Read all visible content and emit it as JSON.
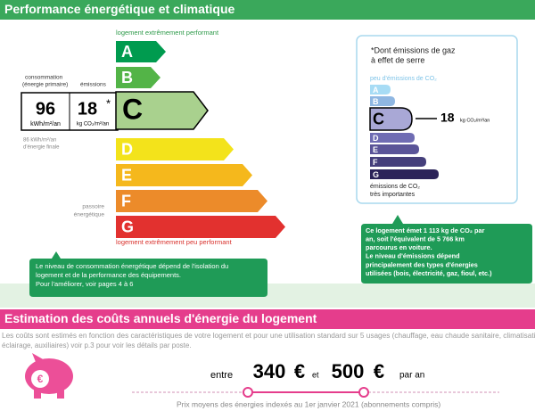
{
  "header": {
    "title": "Performance énergétique et climatique"
  },
  "energy_scale": {
    "top_label": "logement extrêmement performant",
    "bottom_label": "logement extrêmement peu performant",
    "passoire": [
      "passoire",
      "énergétique"
    ],
    "classes": [
      "A",
      "B",
      "C",
      "D",
      "E",
      "F",
      "G"
    ],
    "colors": [
      "#009b4f",
      "#53b447",
      "#a9d18e",
      "#f3e31b",
      "#f5b81c",
      "#ec8b2a",
      "#e2312f"
    ]
  },
  "consumption": {
    "label": [
      "consommation",
      "(énergie primaire)"
    ],
    "value": 96,
    "unit": "kWh/m²/an",
    "final": [
      "86 kWh/m²/an",
      "d'énergie finale"
    ]
  },
  "emissions": {
    "label": "émissions",
    "value": 18,
    "mark": "*",
    "unit": "kg CO₂/m²/an"
  },
  "climate_box": {
    "title": [
      "*Dont émissions de gaz",
      "à effet de serre"
    ],
    "top_label": "peu d'émissions de CO₂",
    "bottom_label": [
      "émissions de CO₂",
      "très importantes"
    ],
    "colors": [
      "#a7dcf5",
      "#8fb7e2",
      "#a9a8d6",
      "#6f6cb3",
      "#5a5498",
      "#453f7b",
      "#2b2359"
    ]
  },
  "left_callout": [
    "Le niveau de consommation énergétique dépend de l'isolation du",
    "logement et de la performance des équipements.",
    "Pour l'améliorer, voir pages 4 à 6"
  ],
  "right_callout": [
    "Ce logement émet 1 113 kg de CO₂ par",
    "an, soit l'équivalent de 5 766 km",
    "parcourus en voiture.",
    "Le niveau d'émissions dépend",
    "principalement des types d'énergies",
    "utilisées (bois, électricité, gaz, fioul, etc.)"
  ],
  "costs": {
    "title": "Estimation des coûts annuels d'énergie du logement",
    "description": [
      "Les coûts sont estimés en fonction des caractéristiques de votre logement et pour une utilisation standard sur 5 usages (chauffage, eau chaude sanitaire, climatisation,",
      "éclairage, auxiliaires) voir p.3 pour voir les détails par poste."
    ],
    "from": "entre",
    "low": 340,
    "and": "et",
    "high": 500,
    "currency": "€",
    "per": "par an",
    "footnote": "Prix moyens des énergies indexés au 1er janvier 2021 (abonnements compris)"
  }
}
